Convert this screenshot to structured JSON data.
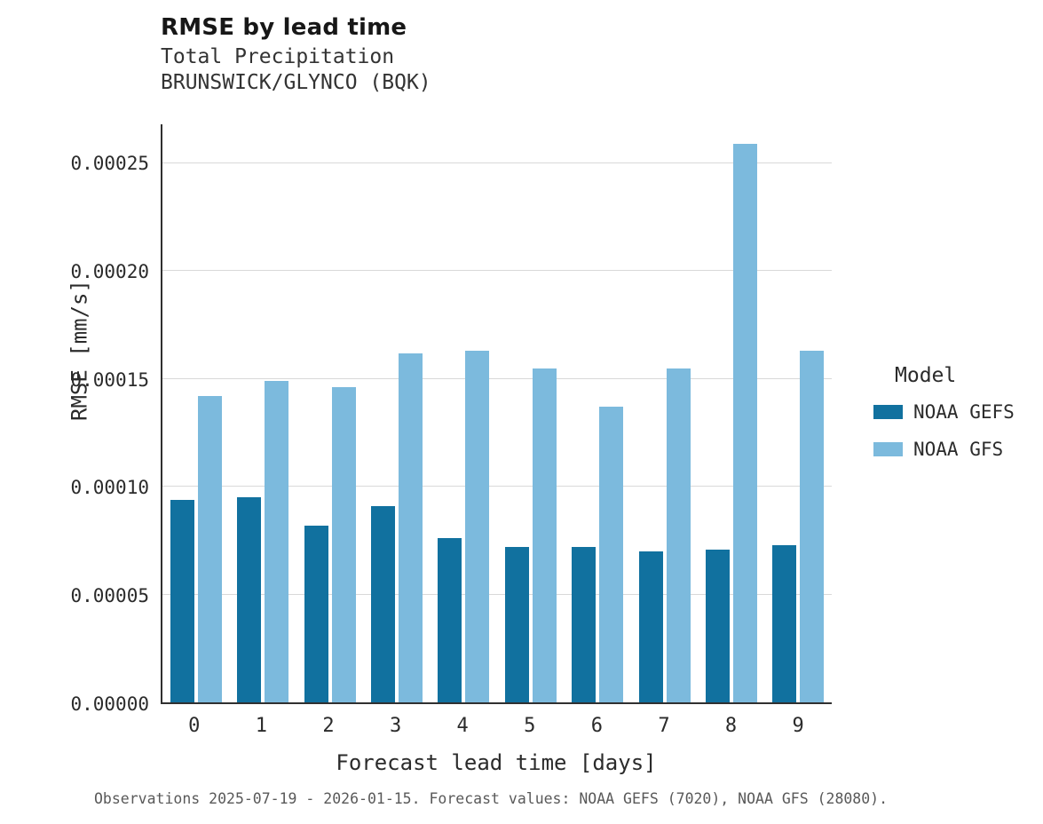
{
  "title": "RMSE by lead time",
  "subtitle_variable": "Total Precipitation",
  "subtitle_station": "BRUNSWICK/GLYNCO (BQK)",
  "caption": "Observations 2025-07-19 - 2026-01-15. Forecast values: NOAA GEFS (7020), NOAA GFS (28080).",
  "legend": {
    "title": "Model",
    "entries": [
      {
        "label": "NOAA GEFS",
        "color": "#11719f"
      },
      {
        "label": "NOAA GFS",
        "color": "#7cbadd"
      }
    ]
  },
  "chart_data": {
    "type": "bar",
    "title": "RMSE by lead time",
    "subtitle": [
      "Total Precipitation",
      "BRUNSWICK/GLYNCO (BQK)"
    ],
    "xlabel": "Forecast lead time [days]",
    "ylabel": "RMSE [mm/s]",
    "categories": [
      "0",
      "1",
      "2",
      "3",
      "4",
      "5",
      "6",
      "7",
      "8",
      "9"
    ],
    "series": [
      {
        "name": "NOAA GEFS",
        "color": "#11719f",
        "values": [
          9.4e-05,
          9.5e-05,
          8.2e-05,
          9.1e-05,
          7.6e-05,
          7.2e-05,
          7.2e-05,
          7e-05,
          7.1e-05,
          7.3e-05
        ]
      },
      {
        "name": "NOAA GFS",
        "color": "#7cbadd",
        "values": [
          0.000142,
          0.000149,
          0.000146,
          0.000162,
          0.000163,
          0.000155,
          0.000137,
          0.000155,
          0.000259,
          0.000163
        ]
      }
    ],
    "ylim": [
      0,
      0.000268
    ],
    "yticks": [
      0,
      5e-05,
      0.0001,
      0.00015,
      0.0002,
      0.00025
    ],
    "ytick_labels": [
      "0.00000",
      "0.00005",
      "0.00010",
      "0.00015",
      "0.00020",
      "0.00025"
    ],
    "grid": true,
    "legend_position": "right",
    "bar_layout": "grouped"
  }
}
